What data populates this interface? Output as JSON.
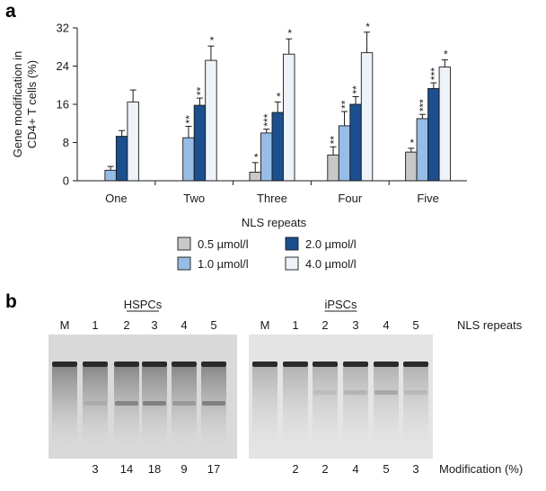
{
  "panels": {
    "a": "a",
    "b": "b"
  },
  "colors": {
    "series": [
      "#c8c8c8",
      "#97bde6",
      "#1b4f8e",
      "#eef2f9"
    ],
    "edge": "#1a1a1a",
    "gel_bg": "#d9d9d9",
    "gel_bg_ipsc": "#e4e4e4",
    "band": "#2a2a2a"
  },
  "chart_data": [
    {
      "type": "bar",
      "categories": [
        "One",
        "Two",
        "Three",
        "Four",
        "Five"
      ],
      "xlabel": "NLS repeats",
      "ylabel": "Gene modification in CD4+ T cells (%)",
      "ylabel_lines": [
        "Gene modification in",
        "CD4+ T cells (%)"
      ],
      "ylim": [
        0,
        32
      ],
      "yticks": [
        0,
        8,
        16,
        24,
        32
      ],
      "legend_position": "bottom",
      "legend_columns": 2,
      "series": [
        {
          "name": "0.5 µmol/l",
          "values": [
            0,
            0,
            1.8,
            5.4,
            6.0
          ],
          "errors": [
            0,
            0,
            2.0,
            1.7,
            0.8
          ],
          "stars": [
            "",
            "",
            "*",
            "**",
            "*"
          ]
        },
        {
          "name": "1.0 µmol/l",
          "values": [
            2.2,
            9.0,
            10.0,
            11.5,
            13.0
          ],
          "errors": [
            0.8,
            2.4,
            0.8,
            3.0,
            0.9
          ],
          "stars": [
            "",
            "**",
            "***",
            "**",
            "***"
          ]
        },
        {
          "name": "2.0 µmol/l",
          "values": [
            9.3,
            15.8,
            14.3,
            16.0,
            19.3
          ],
          "errors": [
            1.2,
            1.5,
            2.2,
            1.6,
            1.2
          ],
          "stars": [
            "",
            "**",
            "*",
            "**",
            "***"
          ]
        },
        {
          "name": "4.0 µmol/l",
          "values": [
            16.5,
            25.2,
            26.5,
            26.8,
            23.8
          ],
          "errors": [
            2.5,
            3.0,
            3.2,
            4.3,
            1.5
          ],
          "stars": [
            "",
            "*",
            "*",
            "*",
            "*"
          ]
        }
      ]
    },
    {
      "type": "table",
      "title": "HSPCs",
      "lanes": [
        "M",
        "1",
        "2",
        "3",
        "4",
        "5"
      ],
      "modification": [
        "",
        "3",
        "14",
        "18",
        "9",
        "17"
      ]
    },
    {
      "type": "table",
      "title": "iPSCs",
      "lanes": [
        "M",
        "1",
        "2",
        "3",
        "4",
        "5"
      ],
      "modification": [
        "",
        "2",
        "2",
        "4",
        "5",
        "3"
      ]
    }
  ],
  "gel_labels": {
    "lanes_label": "NLS repeats",
    "modification_label": "Modification (%)"
  }
}
